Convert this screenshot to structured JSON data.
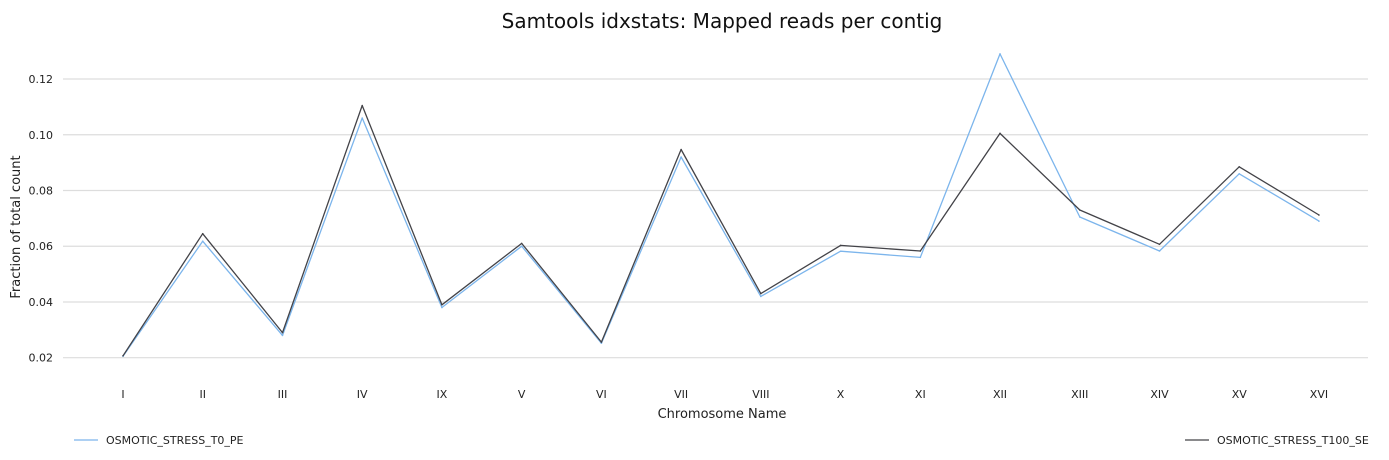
{
  "chart_data": {
    "type": "line",
    "title": "Samtools idxstats: Mapped reads per contig",
    "xlabel": "Chromosome Name",
    "ylabel": "Fraction of total count",
    "categories": [
      "I",
      "II",
      "III",
      "IV",
      "IX",
      "V",
      "VI",
      "VII",
      "VIII",
      "X",
      "XI",
      "XII",
      "XIII",
      "XIV",
      "XV",
      "XVI"
    ],
    "ylim": [
      0.012,
      0.134
    ],
    "yticks": [
      0.02,
      0.04,
      0.06,
      0.08,
      0.1,
      0.12
    ],
    "ytick_labels": [
      "0.02",
      "0.04",
      "0.06",
      "0.08",
      "0.10",
      "0.12"
    ],
    "grid": true,
    "legend_placement": "bottom",
    "series": [
      {
        "name": "OSMOTIC_STRESS_T0_PE",
        "color": "#7cb5ec",
        "values": [
          0.0205,
          0.0618,
          0.028,
          0.106,
          0.038,
          0.06,
          0.0252,
          0.092,
          0.042,
          0.0582,
          0.056,
          0.129,
          0.0705,
          0.0583,
          0.086,
          0.069
        ]
      },
      {
        "name": "OSMOTIC_STRESS_T100_SE",
        "color": "#434348",
        "values": [
          0.0207,
          0.0645,
          0.029,
          0.1105,
          0.039,
          0.061,
          0.0256,
          0.0947,
          0.043,
          0.0603,
          0.0583,
          0.1005,
          0.073,
          0.0607,
          0.0885,
          0.0712
        ]
      }
    ]
  }
}
